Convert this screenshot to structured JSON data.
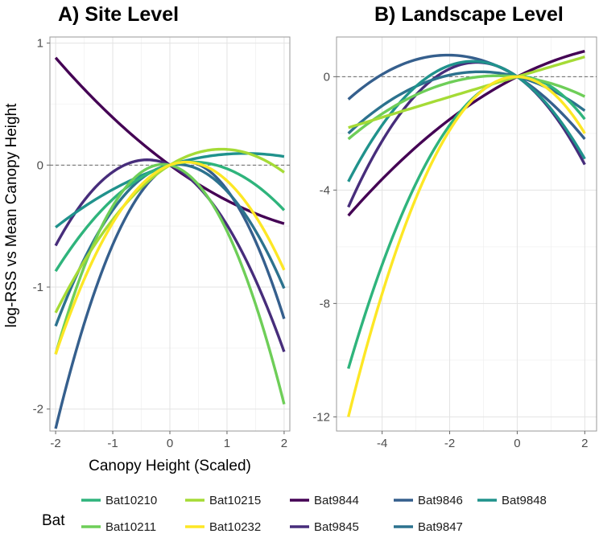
{
  "chart_data": {
    "type": "line",
    "ylabel": "log-RSS vs Mean Canopy Height",
    "legend": {
      "title": "Bat",
      "position": "bottom",
      "entries": [
        {
          "name": "Bat10210",
          "color": "#2fb47c"
        },
        {
          "name": "Bat10215",
          "color": "#a5db36"
        },
        {
          "name": "Bat9844",
          "color": "#440154"
        },
        {
          "name": "Bat9846",
          "color": "#355f8d"
        },
        {
          "name": "Bat9848",
          "color": "#20928c"
        },
        {
          "name": "Bat10211",
          "color": "#6ece58"
        },
        {
          "name": "Bat10232",
          "color": "#fde725"
        },
        {
          "name": "Bat9845",
          "color": "#472d7b"
        },
        {
          "name": "Bat9847",
          "color": "#2c728e"
        }
      ]
    },
    "panels": [
      {
        "title": "A) Site Level",
        "xlabel": "Canopy Height (Scaled)",
        "xlim": [
          -2.1,
          2.1
        ],
        "ylim": [
          -2.18,
          1.05
        ],
        "xticks": [
          -2,
          -1,
          0,
          1,
          2
        ],
        "yticks": [
          -2,
          -1,
          0,
          1
        ],
        "xtick_labels": [
          "-2",
          "-1",
          "0",
          "1",
          "2"
        ],
        "ytick_labels": [
          "-2",
          "-1",
          "0",
          "1"
        ],
        "grid": true,
        "reference_line_y": 0,
        "series": [
          {
            "name": "Bat9844",
            "x": [
              -2,
              0,
              2
            ],
            "y": [
              0.88,
              0,
              -0.48
            ]
          },
          {
            "name": "Bat9845",
            "x": [
              -2,
              0,
              2
            ],
            "y": [
              -0.66,
              0,
              -1.53
            ]
          },
          {
            "name": "Bat9846",
            "x": [
              -2,
              0,
              2
            ],
            "y": [
              -2.16,
              0,
              -1.26
            ]
          },
          {
            "name": "Bat9847",
            "x": [
              -2,
              0,
              2
            ],
            "y": [
              -1.32,
              0,
              -1.01
            ]
          },
          {
            "name": "Bat9848",
            "x": [
              -2,
              0,
              2
            ],
            "y": [
              -0.51,
              0,
              0.07
            ]
          },
          {
            "name": "Bat10210",
            "x": [
              -2,
              0,
              2
            ],
            "y": [
              -0.87,
              0,
              -0.37
            ]
          },
          {
            "name": "Bat10211",
            "x": [
              -2,
              0,
              2
            ],
            "y": [
              -1.55,
              0,
              -1.96
            ]
          },
          {
            "name": "Bat10215",
            "x": [
              -2,
              0,
              2
            ],
            "y": [
              -1.21,
              0,
              -0.06
            ]
          },
          {
            "name": "Bat10232",
            "x": [
              -2,
              0,
              2
            ],
            "y": [
              -1.55,
              0,
              -0.86
            ]
          }
        ]
      },
      {
        "title": "B) Landscape Level",
        "xlabel": "",
        "xlim": [
          -5.35,
          2.35
        ],
        "ylim": [
          -12.5,
          1.4
        ],
        "xticks": [
          -4,
          -2,
          0,
          2
        ],
        "yticks": [
          -12,
          -8,
          -4,
          0
        ],
        "xtick_labels": [
          "-4",
          "-2",
          "0",
          "2"
        ],
        "ytick_labels": [
          "-12",
          "-8",
          "-4",
          "0"
        ],
        "grid": true,
        "reference_line_y": 0,
        "series": [
          {
            "name": "Bat9844",
            "x": [
              -5,
              0,
              2
            ],
            "y": [
              -4.9,
              0,
              0.9
            ]
          },
          {
            "name": "Bat9845",
            "x": [
              -5,
              0,
              2
            ],
            "y": [
              -4.6,
              0,
              -3.1
            ]
          },
          {
            "name": "Bat9846",
            "x": [
              -5,
              0,
              2
            ],
            "y": [
              -0.8,
              0,
              -2.2
            ]
          },
          {
            "name": "Bat9847",
            "x": [
              -5,
              0,
              2
            ],
            "y": [
              -2.0,
              0,
              -1.2
            ]
          },
          {
            "name": "Bat9848",
            "x": [
              -5,
              0,
              2
            ],
            "y": [
              -3.7,
              0,
              -2.9
            ]
          },
          {
            "name": "Bat10210",
            "x": [
              -5,
              0,
              2
            ],
            "y": [
              -10.3,
              0,
              -1.5
            ]
          },
          {
            "name": "Bat10211",
            "x": [
              -5,
              0,
              2
            ],
            "y": [
              -2.2,
              0,
              -0.7
            ]
          },
          {
            "name": "Bat10215",
            "x": [
              -5,
              0,
              2
            ],
            "y": [
              -1.8,
              0,
              0.7
            ]
          },
          {
            "name": "Bat10232",
            "x": [
              -5,
              0,
              2
            ],
            "y": [
              -12.0,
              0,
              -2.0
            ]
          }
        ]
      }
    ]
  }
}
